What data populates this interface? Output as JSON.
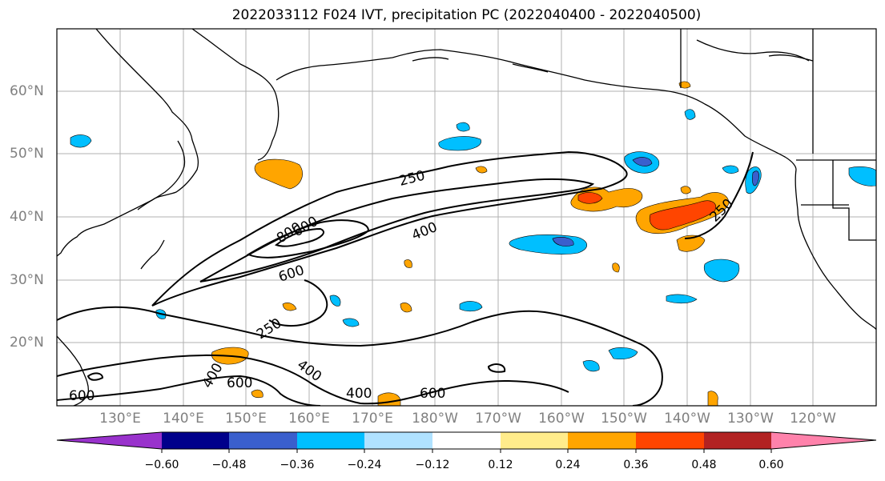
{
  "title": "2022033112 F024 IVT, precipitation PC (2022040400 - 2022040500)",
  "lat_labels": [
    "60°N",
    "50°N",
    "40°N",
    "30°N",
    "20°N"
  ],
  "lon_labels": [
    "130°E",
    "140°E",
    "150°E",
    "160°E",
    "170°E",
    "180°W",
    "170°W",
    "160°W",
    "150°W",
    "140°W",
    "130°W",
    "120°W"
  ],
  "contour_labels": [
    "250",
    "400",
    "600",
    "800",
    "600",
    "250",
    "250",
    "400",
    "600",
    "400",
    "400",
    "600",
    "600"
  ],
  "colorbar": {
    "tick_labels": [
      "−0.60",
      "−0.48",
      "−0.36",
      "−0.24",
      "−0.12",
      "0.12",
      "0.24",
      "0.36",
      "0.48",
      "0.60"
    ],
    "colors": [
      "#9932cc",
      "#00008b",
      "#3a5fcd",
      "#00bfff",
      "#b0e2ff",
      "#ffffff",
      "#ffec8b",
      "#ffa500",
      "#ff4500",
      "#b22222",
      "#ff82ab"
    ]
  }
}
